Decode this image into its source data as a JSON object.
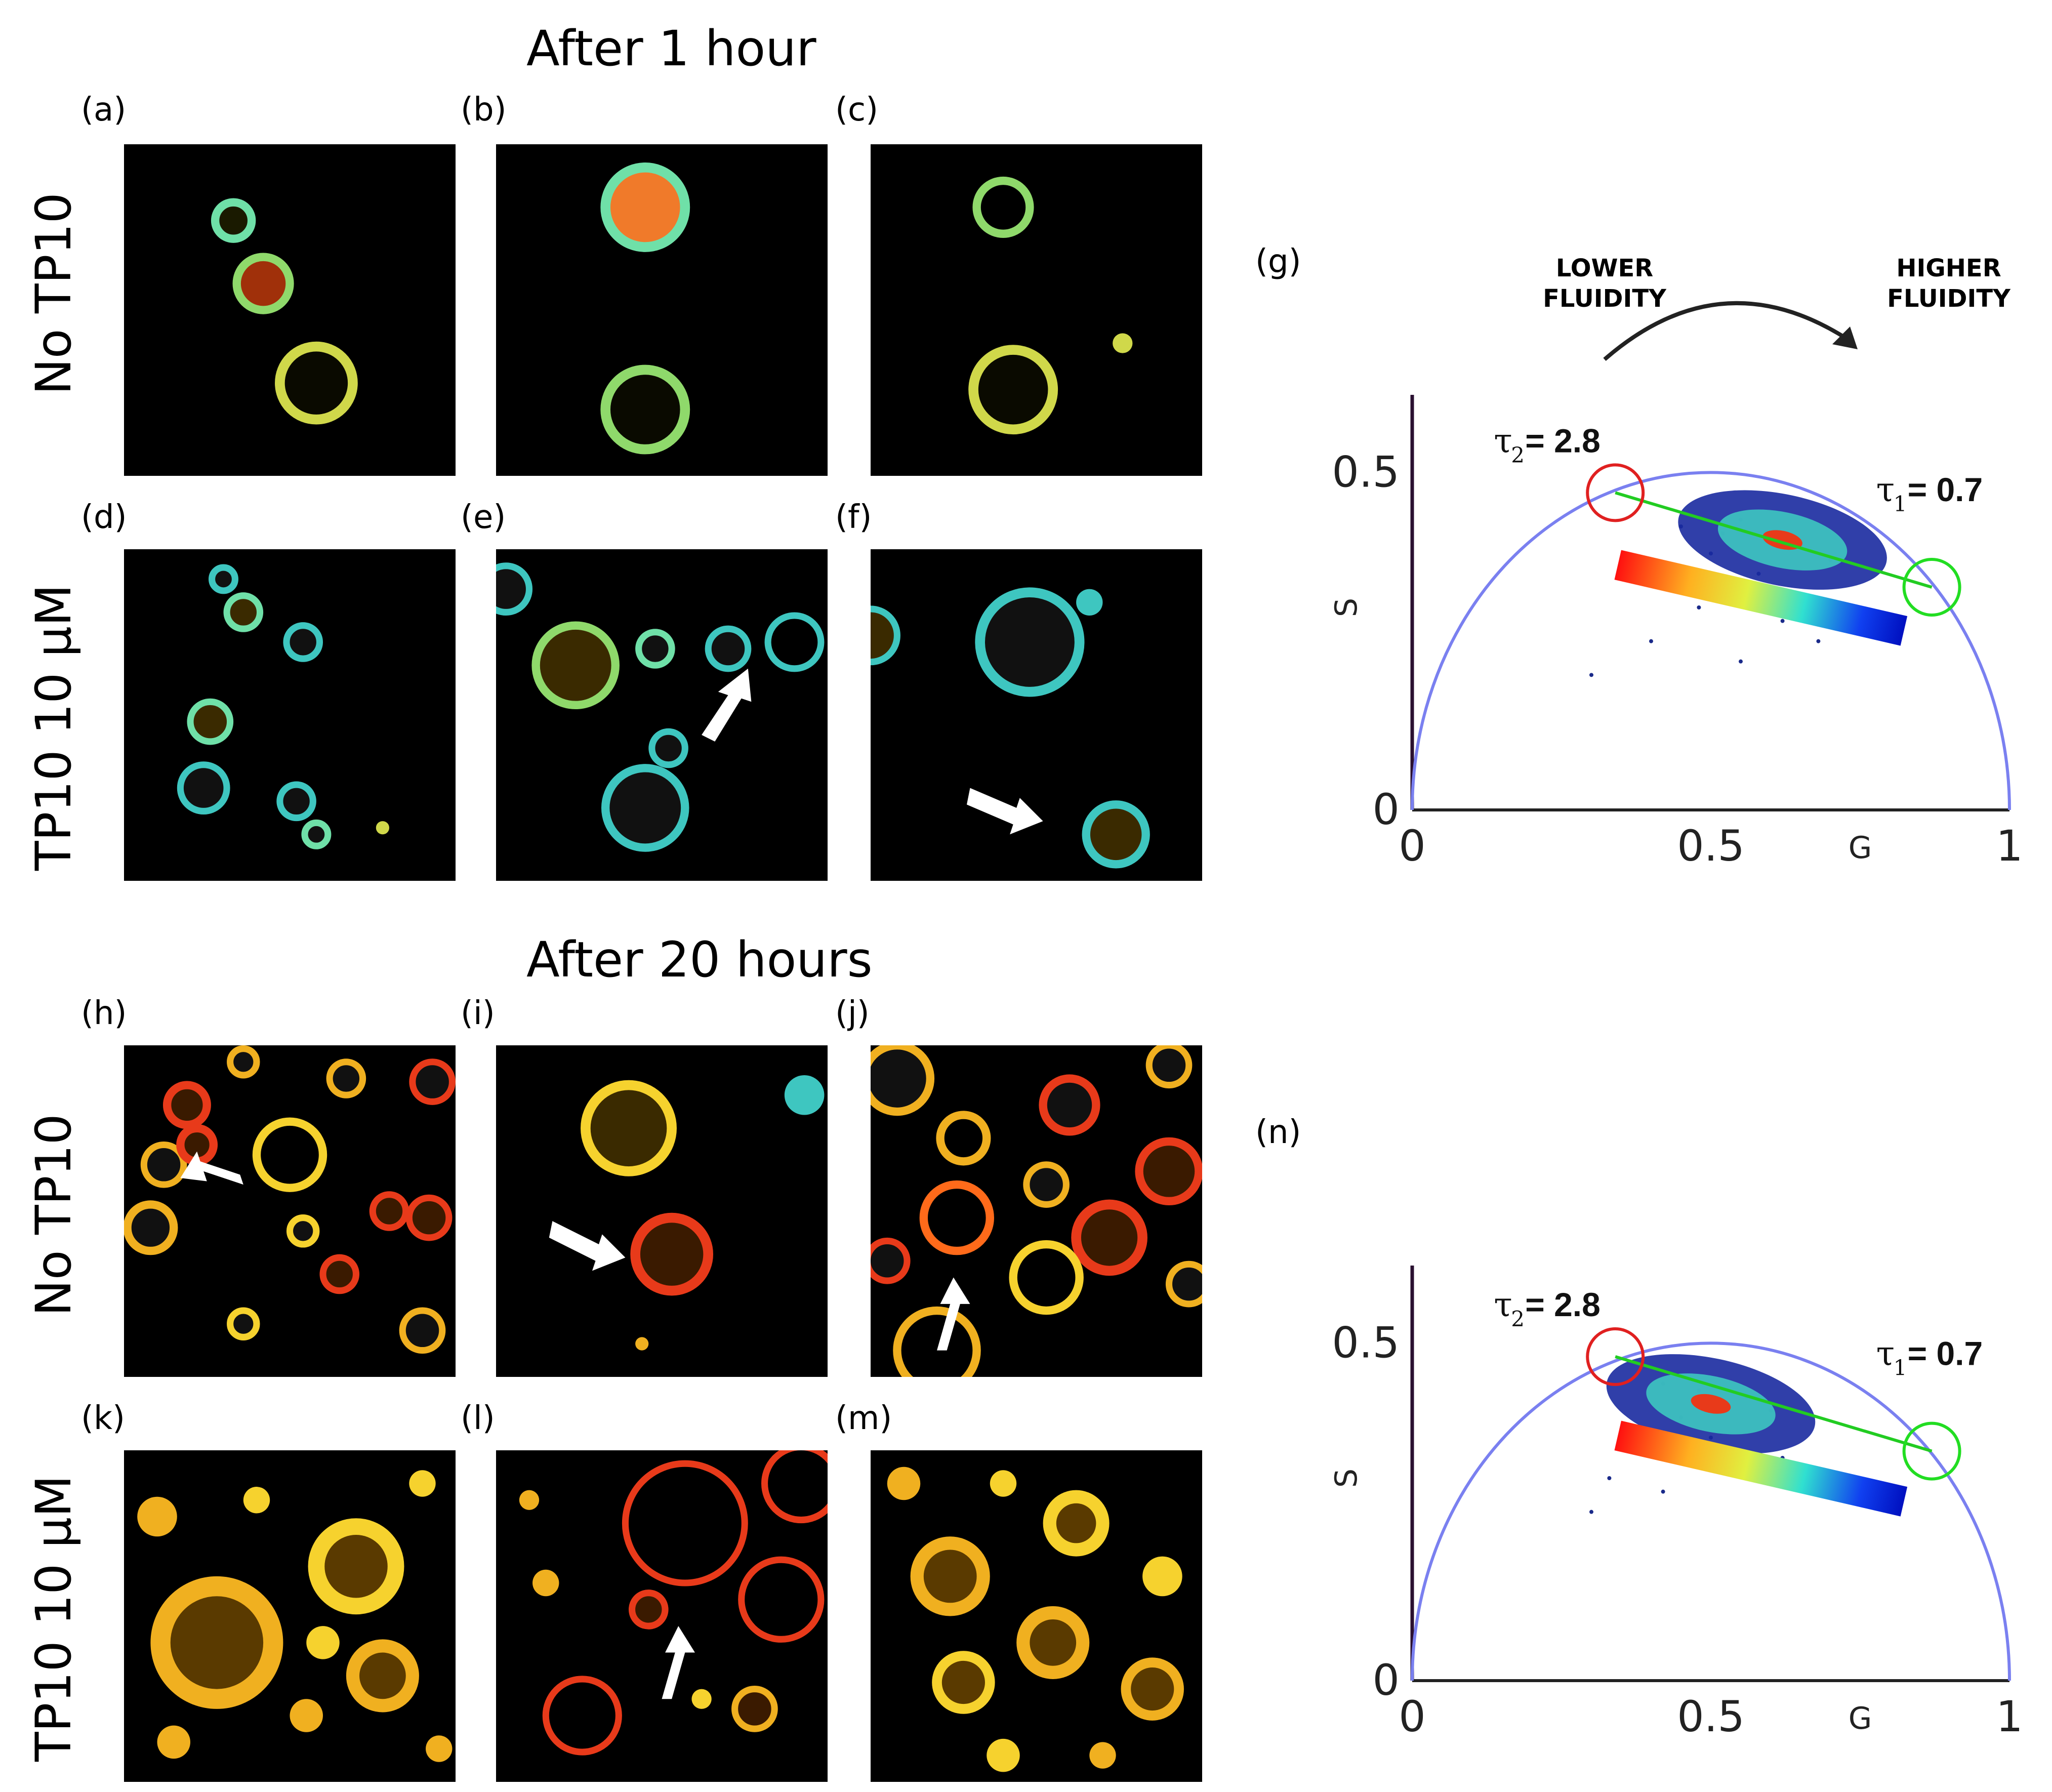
{
  "figure": {
    "section_top": "After 1 hour",
    "section_bottom": "After 20 hours",
    "row_labels": {
      "no_tp10": "No TP10",
      "tp10": "TP10 10 μM"
    },
    "panels": {
      "a": "(a)",
      "b": "(b)",
      "c": "(c)",
      "d": "(d)",
      "e": "(e)",
      "f": "(f)",
      "g": "(g)",
      "h": "(h)",
      "i": "(i)",
      "j": "(j)",
      "k": "(k)",
      "l": "(l)",
      "m": "(m)",
      "n": "(n)"
    },
    "colors": {
      "one_hour_cells": [
        "#3ec6c0",
        "#8fd96b",
        "#6fe0a8",
        "#d0d84a",
        "#f07a2a"
      ],
      "twenty_hour_cells": [
        "#f0b020",
        "#e83a1a",
        "#f6d22e",
        "#ff6a1a"
      ],
      "semicircle": "#7a80f0",
      "fit_line": "#22cc22",
      "tau2_circle": "#e02020",
      "tau1_circle": "#22dd22"
    }
  },
  "phasor_top": {
    "annotation_left": "LOWER FLUIDITY",
    "annotation_right": "HIGHER FLUIDITY"
  },
  "chart_data": [
    {
      "type": "scatter",
      "panel": "(g)",
      "title": "",
      "xlabel": "G",
      "ylabel": "S",
      "xlim": [
        0,
        1
      ],
      "ylim": [
        0,
        0.6
      ],
      "x_ticks": [
        "0",
        "0.5",
        "1"
      ],
      "y_ticks": [
        "0",
        "0.5"
      ],
      "universal_semicircle": true,
      "cloud_center": [
        0.62,
        0.4
      ],
      "points": [
        [
          0.45,
          0.42
        ],
        [
          0.52,
          0.41
        ],
        [
          0.6,
          0.4
        ],
        [
          0.65,
          0.39
        ],
        [
          0.55,
          0.43
        ],
        [
          0.5,
          0.38
        ],
        [
          0.7,
          0.37
        ],
        [
          0.42,
          0.35
        ],
        [
          0.58,
          0.35
        ],
        [
          0.48,
          0.3
        ],
        [
          0.62,
          0.28
        ],
        [
          0.55,
          0.22
        ],
        [
          0.4,
          0.25
        ],
        [
          0.3,
          0.2
        ],
        [
          0.68,
          0.25
        ]
      ],
      "fit_line": {
        "from": [
          0.34,
          0.47
        ],
        "to": [
          0.87,
          0.33
        ]
      },
      "tau2": {
        "symbol": "τ",
        "sub": "2",
        "label": "= 2.8",
        "value": 2.8,
        "G": 0.34,
        "S": 0.47
      },
      "tau1": {
        "symbol": "τ",
        "sub": "1",
        "label": "= 0.7",
        "value": 0.7,
        "G": 0.87,
        "S": 0.33
      }
    },
    {
      "type": "scatter",
      "panel": "(n)",
      "title": "",
      "xlabel": "G",
      "ylabel": "S",
      "xlim": [
        0,
        1
      ],
      "ylim": [
        0,
        0.6
      ],
      "x_ticks": [
        "0",
        "0.5",
        "1"
      ],
      "y_ticks": [
        "0",
        "0.5"
      ],
      "universal_semicircle": true,
      "cloud_center": [
        0.5,
        0.41
      ],
      "points": [
        [
          0.42,
          0.44
        ],
        [
          0.48,
          0.43
        ],
        [
          0.52,
          0.41
        ],
        [
          0.56,
          0.42
        ],
        [
          0.45,
          0.39
        ],
        [
          0.6,
          0.4
        ],
        [
          0.38,
          0.36
        ],
        [
          0.5,
          0.36
        ],
        [
          0.33,
          0.3
        ],
        [
          0.42,
          0.28
        ],
        [
          0.3,
          0.25
        ],
        [
          0.62,
          0.33
        ]
      ],
      "fit_line": {
        "from": [
          0.34,
          0.48
        ],
        "to": [
          0.87,
          0.34
        ]
      },
      "tau2": {
        "symbol": "τ",
        "sub": "2",
        "label": "= 2.8",
        "value": 2.8,
        "G": 0.34,
        "S": 0.48
      },
      "tau1": {
        "symbol": "τ",
        "sub": "1",
        "label": "= 0.7",
        "value": 0.7,
        "G": 0.87,
        "S": 0.34
      }
    }
  ]
}
